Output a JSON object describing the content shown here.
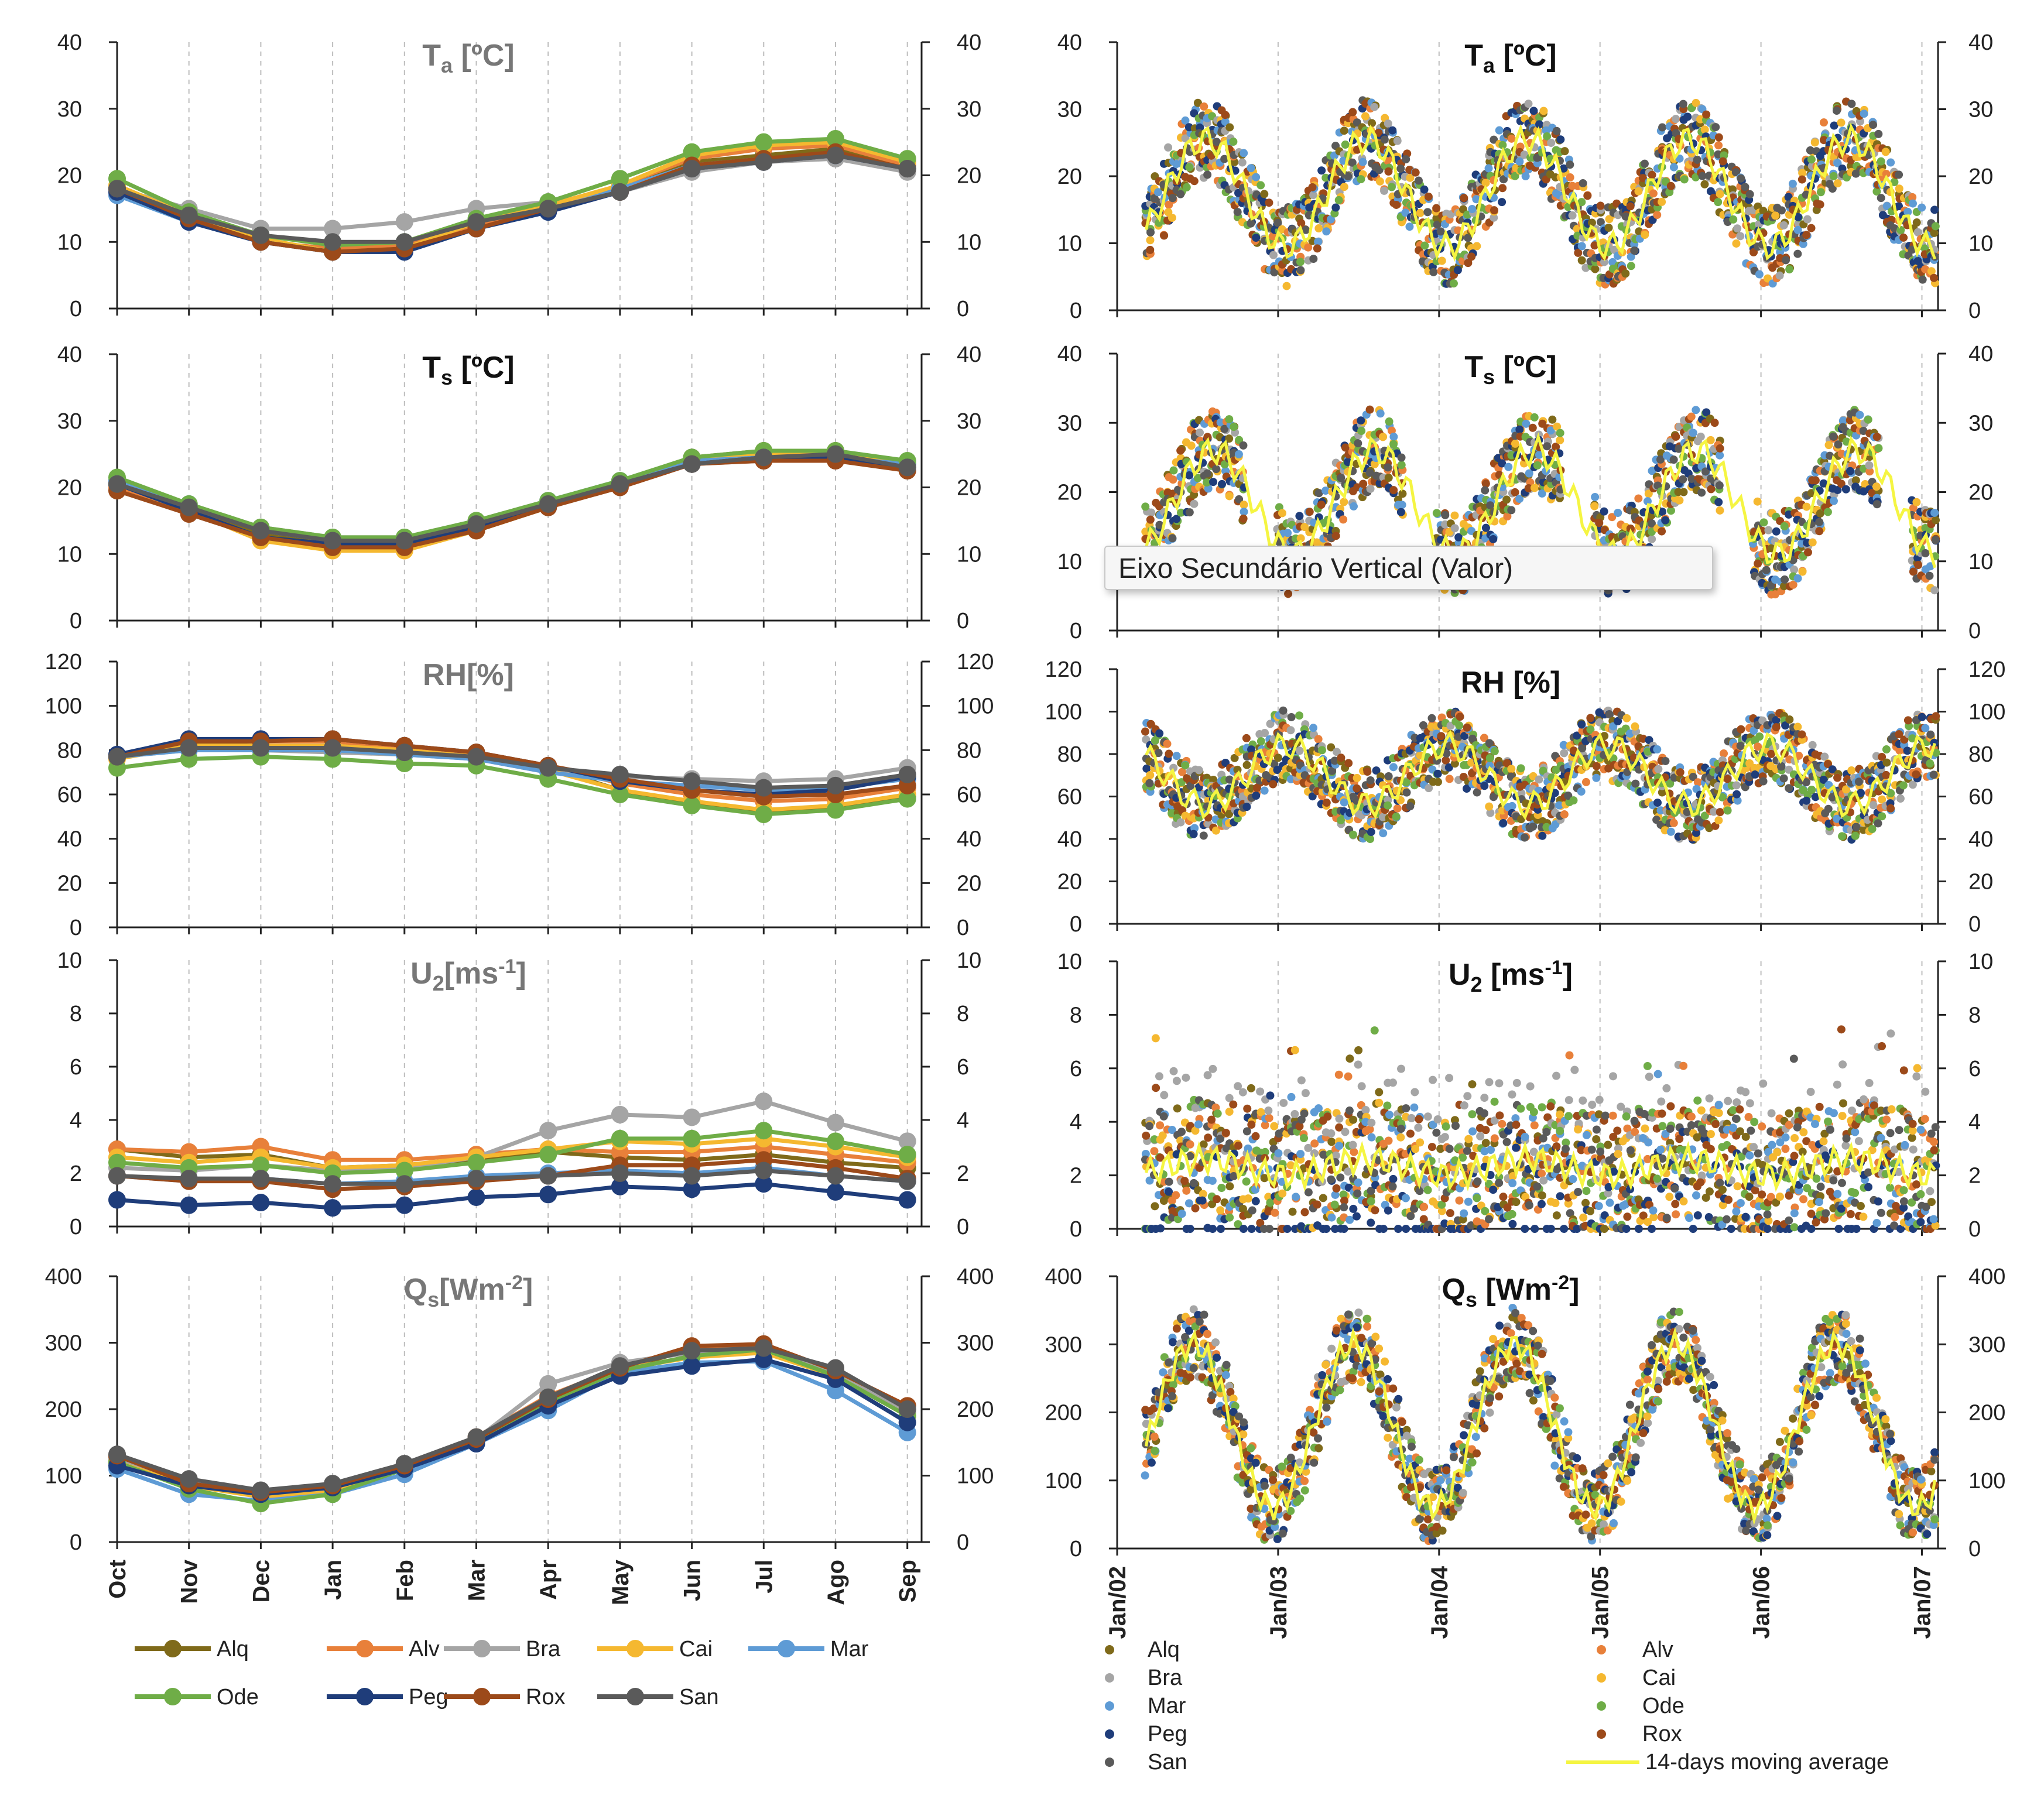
{
  "tooltip": "Eixo Secundário Vertical (Valor)",
  "left_legend": [
    "Alq",
    "Alv",
    "Bra",
    "Cai",
    "Mar",
    "Ode",
    "Peg",
    "Rox",
    "San"
  ],
  "right_legend": {
    "stations": [
      "Alq",
      "Alv",
      "Bra",
      "Cai",
      "Mar",
      "Ode",
      "Peg",
      "Rox",
      "San"
    ],
    "moving_average": "14-days moving average"
  },
  "colors": {
    "Alq": "#7f6a1a",
    "Alv": "#e8803a",
    "Bra": "#a5a5a5",
    "Cai": "#f5b830",
    "Mar": "#5e9bd5",
    "Ode": "#6fad47",
    "Peg": "#1f3d7a",
    "Rox": "#9c4a1a",
    "San": "#5a5a5a",
    "moving_average": "#f5f542"
  },
  "chart_data": [
    {
      "type": "line",
      "panel": "monthly-ta",
      "title": "Ta [ºC]",
      "categories": [
        "Oct",
        "Nov",
        "Dec",
        "Jan",
        "Feb",
        "Mar",
        "Apr",
        "May",
        "Jun",
        "Jul",
        "Ago",
        "Sep"
      ],
      "ylim": [
        0,
        40
      ],
      "yticks": [
        0,
        10,
        20,
        30,
        40
      ],
      "series": [
        {
          "name": "Alq",
          "values": [
            18,
            13.5,
            10,
            8.5,
            9,
            12.5,
            15,
            18,
            22,
            23,
            24,
            21
          ]
        },
        {
          "name": "Alv",
          "values": [
            18,
            13.5,
            10,
            9,
            9.5,
            12.5,
            15,
            18.5,
            22.5,
            24,
            24.5,
            21.5
          ]
        },
        {
          "name": "Bra",
          "values": [
            18,
            15,
            12,
            12,
            13,
            15,
            16,
            17.5,
            20.5,
            22,
            22.5,
            20.5
          ]
        },
        {
          "name": "Cai",
          "values": [
            18.5,
            14,
            10.5,
            8.5,
            9,
            13,
            15.5,
            18.5,
            23,
            24.5,
            25,
            22
          ]
        },
        {
          "name": "Mar",
          "values": [
            17,
            13,
            10,
            8.5,
            8.5,
            12,
            14.5,
            18,
            21.5,
            22.5,
            23,
            21
          ]
        },
        {
          "name": "Ode",
          "values": [
            19.5,
            14.5,
            11,
            9.5,
            10,
            13.5,
            16,
            19.5,
            23.5,
            25,
            25.5,
            22.5
          ]
        },
        {
          "name": "Peg",
          "values": [
            17.5,
            13,
            10,
            8.5,
            8.5,
            12,
            14.5,
            17.5,
            21,
            22,
            23,
            21
          ]
        },
        {
          "name": "Rox",
          "values": [
            18,
            13.5,
            10,
            8.5,
            9,
            12,
            15,
            17.5,
            21.5,
            22.5,
            23.5,
            21
          ]
        },
        {
          "name": "San",
          "values": [
            18,
            14,
            11,
            10,
            10,
            13,
            15,
            17.5,
            21,
            22,
            23,
            21
          ]
        }
      ]
    },
    {
      "type": "line",
      "panel": "monthly-ts",
      "title": "Ts [ºC]",
      "categories": [
        "Oct",
        "Nov",
        "Dec",
        "Jan",
        "Feb",
        "Mar",
        "Apr",
        "May",
        "Jun",
        "Jul",
        "Ago",
        "Sep"
      ],
      "ylim": [
        0,
        40
      ],
      "yticks": [
        0,
        10,
        20,
        30,
        40
      ],
      "series": [
        {
          "name": "Alq",
          "values": [
            20.5,
            17,
            13,
            11.5,
            11.5,
            14,
            17,
            20.5,
            24.5,
            25.5,
            25.5,
            23.5
          ]
        },
        {
          "name": "Alv",
          "values": [
            20,
            16.5,
            12.5,
            11,
            11,
            13.5,
            17,
            20.5,
            24,
            25,
            25,
            23.5
          ]
        },
        {
          "name": "Bra",
          "values": [
            21,
            17.5,
            14,
            12.5,
            12.5,
            15,
            18,
            20.5,
            23.5,
            24,
            24.5,
            23.5
          ]
        },
        {
          "name": "Cai",
          "values": [
            20.5,
            16.5,
            12,
            10.5,
            10.5,
            13.5,
            17,
            20.5,
            24,
            25,
            25,
            23.5
          ]
        },
        {
          "name": "Mar",
          "values": [
            21,
            17.5,
            13.5,
            12,
            12,
            14.5,
            18,
            21,
            24,
            24.5,
            24.5,
            23.5
          ]
        },
        {
          "name": "Ode",
          "values": [
            21.5,
            17.5,
            14,
            12.5,
            12.5,
            15,
            18,
            21,
            24.5,
            25.5,
            25.5,
            24
          ]
        },
        {
          "name": "Peg",
          "values": [
            20.5,
            16.5,
            12.5,
            11.5,
            11.5,
            14,
            17,
            20.5,
            23.5,
            24.5,
            24.5,
            23
          ]
        },
        {
          "name": "Rox",
          "values": [
            19.5,
            16,
            12.5,
            11,
            11,
            13.5,
            17,
            20,
            23.5,
            24,
            24,
            22.5
          ]
        },
        {
          "name": "San",
          "values": [
            20.5,
            17,
            13.5,
            12,
            12,
            14.5,
            17.5,
            20.5,
            23.5,
            24.5,
            25,
            23
          ]
        }
      ]
    },
    {
      "type": "line",
      "panel": "monthly-rh",
      "title": "RH[%]",
      "categories": [
        "Oct",
        "Nov",
        "Dec",
        "Jan",
        "Feb",
        "Mar",
        "Apr",
        "May",
        "Jun",
        "Jul",
        "Ago",
        "Sep"
      ],
      "ylim": [
        0,
        120
      ],
      "yticks": [
        0,
        20,
        40,
        60,
        80,
        100,
        120
      ],
      "series": [
        {
          "name": "Alq",
          "values": [
            77,
            83,
            84,
            84,
            81,
            78,
            72,
            62,
            56,
            52,
            54,
            59
          ]
        },
        {
          "name": "Alv",
          "values": [
            77,
            84,
            84,
            84,
            81,
            79,
            73,
            65,
            60,
            57,
            58,
            63
          ]
        },
        {
          "name": "Bra",
          "values": [
            77,
            80,
            80,
            79,
            78,
            76,
            70,
            68,
            67,
            66,
            67,
            72
          ]
        },
        {
          "name": "Cai",
          "values": [
            76,
            82,
            82,
            82,
            80,
            77,
            71,
            62,
            57,
            53,
            55,
            60
          ]
        },
        {
          "name": "Mar",
          "values": [
            77,
            80,
            80,
            80,
            78,
            76,
            70,
            66,
            64,
            62,
            63,
            67
          ]
        },
        {
          "name": "Ode",
          "values": [
            72,
            76,
            77,
            76,
            74,
            73,
            67,
            60,
            55,
            51,
            53,
            58
          ]
        },
        {
          "name": "Peg",
          "values": [
            78,
            85,
            85,
            85,
            82,
            79,
            73,
            66,
            62,
            60,
            62,
            68
          ]
        },
        {
          "name": "Rox",
          "values": [
            77,
            84,
            84,
            85,
            82,
            79,
            73,
            67,
            62,
            59,
            60,
            64
          ]
        },
        {
          "name": "San",
          "values": [
            77,
            81,
            81,
            81,
            79,
            77,
            72,
            69,
            66,
            63,
            64,
            69
          ]
        }
      ]
    },
    {
      "type": "line",
      "panel": "monthly-u2",
      "title": "U2[ms-1]",
      "categories": [
        "Oct",
        "Nov",
        "Dec",
        "Jan",
        "Feb",
        "Mar",
        "Apr",
        "May",
        "Jun",
        "Jul",
        "Ago",
        "Sep"
      ],
      "ylim": [
        0,
        10
      ],
      "yticks": [
        0,
        2,
        4,
        6,
        8,
        10
      ],
      "series": [
        {
          "name": "Alq",
          "values": [
            2.9,
            2.6,
            2.7,
            2.2,
            2.3,
            2.5,
            2.8,
            2.6,
            2.5,
            2.7,
            2.4,
            2.2
          ]
        },
        {
          "name": "Alv",
          "values": [
            2.9,
            2.8,
            3.0,
            2.5,
            2.5,
            2.7,
            2.9,
            2.8,
            2.8,
            3.0,
            2.7,
            2.4
          ]
        },
        {
          "name": "Bra",
          "values": [
            2.2,
            2.1,
            2.3,
            2.1,
            2.2,
            2.6,
            3.6,
            4.2,
            4.1,
            4.7,
            3.9,
            3.2
          ]
        },
        {
          "name": "Cai",
          "values": [
            2.6,
            2.4,
            2.6,
            2.2,
            2.3,
            2.6,
            2.9,
            3.2,
            3.1,
            3.3,
            3.0,
            2.6
          ]
        },
        {
          "name": "Mar",
          "values": [
            1.9,
            1.7,
            1.8,
            1.6,
            1.7,
            1.9,
            2.0,
            2.1,
            2.0,
            2.2,
            1.9,
            1.7
          ]
        },
        {
          "name": "Ode",
          "values": [
            2.4,
            2.2,
            2.3,
            2.0,
            2.1,
            2.4,
            2.7,
            3.3,
            3.3,
            3.6,
            3.2,
            2.7
          ]
        },
        {
          "name": "Peg",
          "values": [
            1.0,
            0.8,
            0.9,
            0.7,
            0.8,
            1.1,
            1.2,
            1.5,
            1.4,
            1.6,
            1.3,
            1.0
          ]
        },
        {
          "name": "Rox",
          "values": [
            1.9,
            1.7,
            1.7,
            1.4,
            1.5,
            1.7,
            1.9,
            2.3,
            2.3,
            2.5,
            2.2,
            1.8
          ]
        },
        {
          "name": "San",
          "values": [
            1.9,
            1.8,
            1.8,
            1.6,
            1.6,
            1.8,
            1.9,
            2.0,
            1.9,
            2.1,
            1.9,
            1.7
          ]
        }
      ]
    },
    {
      "type": "line",
      "panel": "monthly-qs",
      "title": "Qs[Wm-2]",
      "categories": [
        "Oct",
        "Nov",
        "Dec",
        "Jan",
        "Feb",
        "Mar",
        "Apr",
        "May",
        "Jun",
        "Jul",
        "Ago",
        "Sep"
      ],
      "ylim": [
        0,
        400
      ],
      "yticks": [
        0,
        100,
        200,
        300,
        400
      ],
      "series": [
        {
          "name": "Alq",
          "values": [
            125,
            90,
            72,
            80,
            112,
            155,
            215,
            260,
            290,
            295,
            255,
            200
          ]
        },
        {
          "name": "Alv",
          "values": [
            128,
            92,
            74,
            84,
            115,
            158,
            220,
            262,
            292,
            296,
            258,
            205
          ]
        },
        {
          "name": "Bra",
          "values": [
            125,
            90,
            72,
            80,
            112,
            155,
            238,
            270,
            285,
            290,
            255,
            195
          ]
        },
        {
          "name": "Cai",
          "values": [
            120,
            85,
            68,
            75,
            110,
            155,
            215,
            260,
            278,
            285,
            250,
            190
          ]
        },
        {
          "name": "Mar",
          "values": [
            110,
            72,
            62,
            72,
            102,
            148,
            198,
            255,
            270,
            272,
            228,
            165
          ]
        },
        {
          "name": "Ode",
          "values": [
            120,
            80,
            58,
            72,
            110,
            152,
            210,
            258,
            280,
            290,
            250,
            190
          ]
        },
        {
          "name": "Peg",
          "values": [
            115,
            85,
            72,
            82,
            110,
            148,
            205,
            250,
            265,
            275,
            245,
            180
          ]
        },
        {
          "name": "Rox",
          "values": [
            130,
            88,
            75,
            85,
            115,
            155,
            215,
            262,
            295,
            298,
            258,
            205
          ]
        },
        {
          "name": "San",
          "values": [
            132,
            95,
            78,
            88,
            118,
            158,
            218,
            265,
            288,
            292,
            262,
            200
          ]
        }
      ]
    },
    {
      "type": "scatter",
      "panel": "daily-ta",
      "title": "Ta [ºC]",
      "xticks": [
        "Jan/02",
        "Jan/03",
        "Jan/04",
        "Jan/05",
        "Jan/06",
        "Jan/07"
      ],
      "ylim": [
        0,
        40
      ],
      "yticks": [
        0,
        10,
        20,
        30,
        40
      ],
      "mean": 17.5,
      "amplitude": 8,
      "phase_peak": 0.55,
      "moving_average_label": "14-days moving average"
    },
    {
      "type": "scatter",
      "panel": "daily-ts",
      "title": "Ts [ºC]",
      "xticks": [
        "Jan/02",
        "Jan/03",
        "Jan/04",
        "Jan/05",
        "Jan/06",
        "Jan/07"
      ],
      "ylim": [
        0,
        40
      ],
      "yticks": [
        0,
        10,
        20,
        30,
        40
      ],
      "mean": 18.5,
      "amplitude": 7.5,
      "phase_peak": 0.6
    },
    {
      "type": "scatter",
      "panel": "daily-rh",
      "title": "RH [%]",
      "xticks": [
        "Jan/02",
        "Jan/03",
        "Jan/04",
        "Jan/05",
        "Jan/06",
        "Jan/07"
      ],
      "ylim": [
        0,
        120
      ],
      "yticks": [
        0,
        20,
        40,
        60,
        80,
        100,
        120
      ],
      "mean": 70,
      "amplitude": -14,
      "phase_peak": 0.55
    },
    {
      "type": "scatter",
      "panel": "daily-u2",
      "title": "U2 [ms-1]",
      "xticks": [
        "Jan/02",
        "Jan/03",
        "Jan/04",
        "Jan/05",
        "Jan/06",
        "Jan/07"
      ],
      "ylim": [
        0,
        10
      ],
      "yticks": [
        0,
        2,
        4,
        6,
        8,
        10
      ],
      "mean": 2.3,
      "amplitude": 0.3,
      "phase_peak": 0.55
    },
    {
      "type": "scatter",
      "panel": "daily-qs",
      "title": "Qs [Wm-2]",
      "xticks": [
        "Jan/02",
        "Jan/03",
        "Jan/04",
        "Jan/05",
        "Jan/06",
        "Jan/07"
      ],
      "ylim": [
        0,
        400
      ],
      "yticks": [
        0,
        100,
        200,
        300,
        400
      ],
      "mean": 180,
      "amplitude": 120,
      "phase_peak": 0.47
    }
  ]
}
